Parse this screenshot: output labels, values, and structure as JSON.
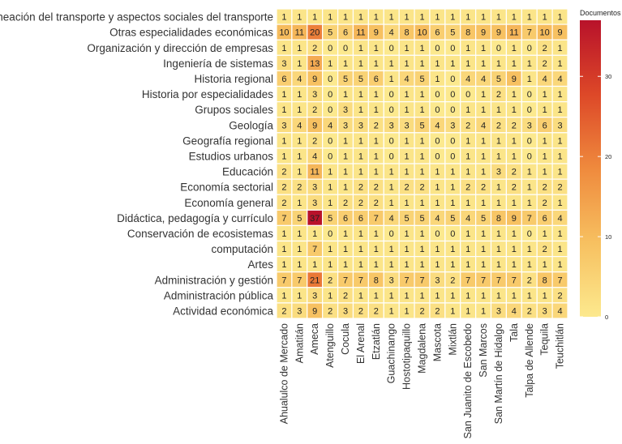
{
  "chart_data": {
    "type": "heatmap",
    "legend": {
      "title": "Documentos",
      "ticks": [
        0,
        10,
        20,
        30
      ],
      "range": [
        0,
        37
      ],
      "position": "right"
    },
    "color_scale": [
      "#fce98e",
      "#f7c060",
      "#ef8a3d",
      "#dd4828",
      "#b8122a"
    ],
    "columns": [
      "Ahualulco de Mercado",
      "Amatitán",
      "Ameca",
      "Atenguillo",
      "Cocula",
      "El Arenal",
      "Etzatlán",
      "Guachinango",
      "Hostotipaquillo",
      "Magdalena",
      "Mascota",
      "Mixtlán",
      "San Juanito de Escobedo",
      "San Marcos",
      "San Martín de Hidalgo",
      "Tala",
      "Talpa de Allende",
      "Tequila",
      "Teuchitlán"
    ],
    "rows": [
      {
        "label": "Planeación del transporte y aspectos sociales del transporte",
        "values": [
          1,
          1,
          1,
          1,
          1,
          1,
          1,
          1,
          1,
          1,
          1,
          1,
          1,
          1,
          1,
          1,
          1,
          1,
          1
        ]
      },
      {
        "label": "Otras especialidades económicas",
        "values": [
          10,
          11,
          20,
          5,
          6,
          11,
          9,
          4,
          8,
          10,
          6,
          5,
          8,
          9,
          9,
          11,
          7,
          10,
          9
        ]
      },
      {
        "label": "Organización y dirección de empresas",
        "values": [
          1,
          1,
          2,
          0,
          0,
          1,
          1,
          0,
          1,
          1,
          0,
          0,
          1,
          1,
          0,
          1,
          0,
          2,
          1
        ]
      },
      {
        "label": "Ingeniería de sistemas",
        "values": [
          3,
          1,
          13,
          1,
          1,
          1,
          1,
          1,
          1,
          1,
          1,
          1,
          1,
          1,
          1,
          1,
          1,
          2,
          1
        ]
      },
      {
        "label": "Historia regional",
        "values": [
          6,
          4,
          9,
          0,
          5,
          5,
          6,
          1,
          4,
          5,
          1,
          0,
          4,
          4,
          5,
          9,
          1,
          4,
          4
        ]
      },
      {
        "label": "Historia por especialidades",
        "values": [
          1,
          1,
          3,
          0,
          1,
          1,
          1,
          0,
          1,
          1,
          0,
          0,
          0,
          1,
          2,
          1,
          0,
          1,
          1
        ]
      },
      {
        "label": "Grupos sociales",
        "values": [
          1,
          1,
          2,
          0,
          3,
          1,
          1,
          0,
          1,
          1,
          0,
          0,
          1,
          1,
          1,
          1,
          0,
          1,
          1
        ]
      },
      {
        "label": "Geología",
        "values": [
          3,
          4,
          9,
          4,
          3,
          3,
          2,
          3,
          3,
          5,
          4,
          3,
          2,
          4,
          2,
          2,
          3,
          6,
          3
        ]
      },
      {
        "label": "Geografía regional",
        "values": [
          1,
          1,
          2,
          0,
          1,
          1,
          1,
          0,
          1,
          1,
          0,
          0,
          1,
          1,
          1,
          1,
          0,
          1,
          1
        ]
      },
      {
        "label": "Estudios urbanos",
        "values": [
          1,
          1,
          4,
          0,
          1,
          1,
          1,
          0,
          1,
          1,
          0,
          0,
          1,
          1,
          1,
          1,
          0,
          1,
          1
        ]
      },
      {
        "label": "Educación",
        "values": [
          2,
          1,
          11,
          1,
          1,
          1,
          1,
          1,
          1,
          1,
          1,
          1,
          1,
          1,
          3,
          2,
          1,
          1,
          1
        ]
      },
      {
        "label": "Economía sectorial",
        "values": [
          2,
          2,
          3,
          1,
          1,
          2,
          2,
          1,
          2,
          2,
          1,
          1,
          2,
          2,
          1,
          2,
          1,
          2,
          2
        ]
      },
      {
        "label": "Economía general",
        "values": [
          2,
          1,
          3,
          1,
          2,
          2,
          2,
          1,
          1,
          1,
          1,
          1,
          1,
          1,
          1,
          1,
          1,
          2,
          1
        ]
      },
      {
        "label": "Didáctica, pedagogía y currículo",
        "values": [
          7,
          5,
          37,
          5,
          6,
          6,
          7,
          4,
          5,
          5,
          4,
          5,
          4,
          5,
          8,
          9,
          7,
          6,
          4
        ]
      },
      {
        "label": "Conservación de ecosistemas",
        "values": [
          1,
          1,
          1,
          0,
          1,
          1,
          1,
          0,
          1,
          1,
          0,
          0,
          1,
          1,
          1,
          1,
          0,
          1,
          1
        ]
      },
      {
        "label": "computación",
        "values": [
          1,
          1,
          7,
          1,
          1,
          1,
          1,
          1,
          1,
          1,
          1,
          1,
          1,
          1,
          1,
          1,
          1,
          2,
          1
        ]
      },
      {
        "label": "Artes",
        "values": [
          1,
          1,
          1,
          1,
          1,
          1,
          1,
          1,
          1,
          1,
          1,
          1,
          1,
          1,
          1,
          1,
          1,
          1,
          1
        ]
      },
      {
        "label": "Administración y gestión",
        "values": [
          7,
          7,
          21,
          2,
          7,
          7,
          8,
          3,
          7,
          7,
          3,
          2,
          7,
          7,
          7,
          7,
          2,
          8,
          7
        ]
      },
      {
        "label": "Administración pública",
        "values": [
          1,
          1,
          3,
          1,
          2,
          1,
          1,
          1,
          1,
          1,
          1,
          1,
          1,
          1,
          1,
          1,
          1,
          1,
          2
        ]
      },
      {
        "label": "Actividad económica",
        "values": [
          2,
          3,
          9,
          2,
          3,
          2,
          2,
          1,
          1,
          2,
          2,
          1,
          1,
          1,
          3,
          4,
          2,
          3,
          4
        ]
      }
    ]
  }
}
